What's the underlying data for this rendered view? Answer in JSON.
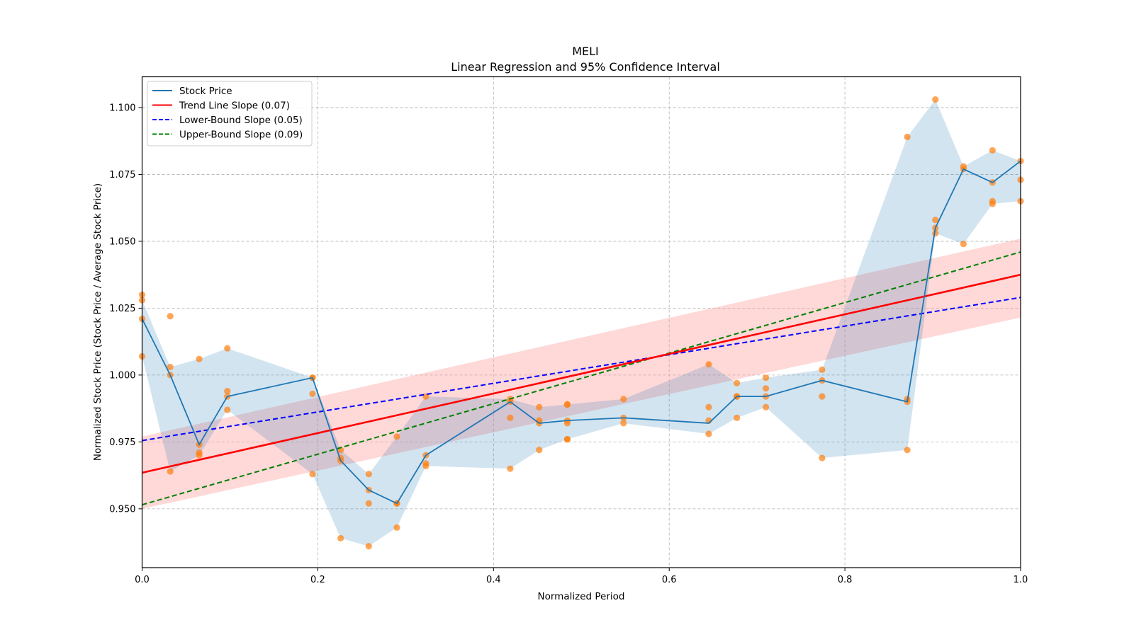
{
  "chart_data": {
    "type": "line",
    "title": "MELI",
    "subtitle": "Linear Regression and 95% Confidence Interval",
    "xlabel": "Normalized Period",
    "ylabel": "Normalized Stock Price (Stock Price / Average Stock Price)",
    "xlim": [
      0.0,
      1.0
    ],
    "ylim": [
      0.928,
      1.1115
    ],
    "grid": true,
    "legend_position": "top-left",
    "x_ticks": [
      "0.0",
      "0.2",
      "0.4",
      "0.6",
      "0.8",
      "1.0"
    ],
    "x_tick_values": [
      0.0,
      0.2,
      0.4,
      0.6,
      0.8,
      1.0
    ],
    "y_ticks": [
      "0.950",
      "0.975",
      "1.000",
      "1.025",
      "1.050",
      "1.075",
      "1.100"
    ],
    "y_tick_values": [
      0.95,
      0.975,
      1.0,
      1.025,
      1.05,
      1.075,
      1.1
    ],
    "legend": [
      {
        "label": "Stock Price",
        "color": "#1f77b4",
        "style": "solid"
      },
      {
        "label": "Trend Line Slope (0.07)",
        "color": "#ff0000",
        "style": "solid"
      },
      {
        "label": "Lower-Bound Slope (0.05)",
        "color": "#0000ff",
        "style": "dashed"
      },
      {
        "label": "Upper-Bound Slope (0.09)",
        "color": "#008000",
        "style": "dashed"
      }
    ],
    "series": [
      {
        "name": "Stock Price",
        "color": "#1f77b4",
        "x": [
          0.0,
          0.032,
          0.065,
          0.097,
          0.194,
          0.226,
          0.258,
          0.29,
          0.323,
          0.419,
          0.452,
          0.484,
          0.548,
          0.645,
          0.677,
          0.71,
          0.774,
          0.871,
          0.903,
          0.935,
          0.968,
          1.0
        ],
        "y": [
          1.021,
          1.0,
          0.974,
          0.992,
          0.999,
          0.968,
          0.957,
          0.952,
          0.97,
          0.99,
          0.982,
          0.983,
          0.984,
          0.982,
          0.992,
          0.992,
          0.998,
          0.99,
          1.055,
          1.077,
          1.072,
          1.08
        ],
        "band_upper": [
          1.028,
          1.003,
          1.006,
          1.01,
          0.999,
          0.972,
          0.963,
          0.977,
          0.992,
          0.991,
          0.988,
          0.989,
          0.991,
          1.004,
          0.997,
          0.999,
          1.002,
          1.089,
          1.103,
          1.078,
          1.084,
          1.08
        ],
        "band_lower": [
          1.007,
          0.964,
          0.97,
          0.987,
          0.963,
          0.939,
          0.936,
          0.943,
          0.966,
          0.965,
          0.972,
          0.976,
          0.982,
          0.978,
          0.984,
          0.988,
          0.969,
          0.972,
          1.053,
          1.049,
          1.064,
          1.065
        ],
        "band_color": "#1f77b4"
      }
    ],
    "scatter": {
      "color": "#ff7f0e",
      "points": [
        [
          0.0,
          1.03
        ],
        [
          0.0,
          1.028
        ],
        [
          0.0,
          1.021
        ],
        [
          0.0,
          1.007
        ],
        [
          0.032,
          1.022
        ],
        [
          0.032,
          1.003
        ],
        [
          0.032,
          1.0
        ],
        [
          0.032,
          0.964
        ],
        [
          0.065,
          1.006
        ],
        [
          0.065,
          0.974
        ],
        [
          0.065,
          0.971
        ],
        [
          0.065,
          0.97
        ],
        [
          0.097,
          1.01
        ],
        [
          0.097,
          0.994
        ],
        [
          0.097,
          0.992
        ],
        [
          0.097,
          0.987
        ],
        [
          0.194,
          0.999
        ],
        [
          0.194,
          0.999
        ],
        [
          0.194,
          0.993
        ],
        [
          0.194,
          0.963
        ],
        [
          0.226,
          0.972
        ],
        [
          0.226,
          0.969
        ],
        [
          0.226,
          0.968
        ],
        [
          0.226,
          0.939
        ],
        [
          0.258,
          0.963
        ],
        [
          0.258,
          0.957
        ],
        [
          0.258,
          0.952
        ],
        [
          0.258,
          0.936
        ],
        [
          0.29,
          0.977
        ],
        [
          0.29,
          0.952
        ],
        [
          0.29,
          0.952
        ],
        [
          0.29,
          0.943
        ],
        [
          0.323,
          0.992
        ],
        [
          0.323,
          0.97
        ],
        [
          0.323,
          0.967
        ],
        [
          0.323,
          0.966
        ],
        [
          0.419,
          0.991
        ],
        [
          0.419,
          0.99
        ],
        [
          0.419,
          0.984
        ],
        [
          0.419,
          0.965
        ],
        [
          0.452,
          0.988
        ],
        [
          0.452,
          0.983
        ],
        [
          0.452,
          0.982
        ],
        [
          0.452,
          0.972
        ],
        [
          0.484,
          0.989
        ],
        [
          0.484,
          0.989
        ],
        [
          0.484,
          0.983
        ],
        [
          0.484,
          0.982
        ],
        [
          0.484,
          0.976
        ],
        [
          0.484,
          0.976
        ],
        [
          0.548,
          0.991
        ],
        [
          0.548,
          0.984
        ],
        [
          0.548,
          0.982
        ],
        [
          0.645,
          1.004
        ],
        [
          0.645,
          0.988
        ],
        [
          0.645,
          0.983
        ],
        [
          0.645,
          0.978
        ],
        [
          0.677,
          0.997
        ],
        [
          0.677,
          0.992
        ],
        [
          0.677,
          0.992
        ],
        [
          0.677,
          0.984
        ],
        [
          0.71,
          0.999
        ],
        [
          0.71,
          0.995
        ],
        [
          0.71,
          0.992
        ],
        [
          0.71,
          0.988
        ],
        [
          0.774,
          1.002
        ],
        [
          0.774,
          0.998
        ],
        [
          0.774,
          0.992
        ],
        [
          0.774,
          0.969
        ],
        [
          0.871,
          1.089
        ],
        [
          0.871,
          0.991
        ],
        [
          0.871,
          0.99
        ],
        [
          0.871,
          0.972
        ],
        [
          0.903,
          1.103
        ],
        [
          0.903,
          1.058
        ],
        [
          0.903,
          1.055
        ],
        [
          0.903,
          1.053
        ],
        [
          0.935,
          1.078
        ],
        [
          0.935,
          1.077
        ],
        [
          0.935,
          1.049
        ],
        [
          0.968,
          1.084
        ],
        [
          0.968,
          1.072
        ],
        [
          0.968,
          1.065
        ],
        [
          0.968,
          1.064
        ],
        [
          1.0,
          1.08
        ],
        [
          1.0,
          1.073
        ],
        [
          1.0,
          1.065
        ]
      ]
    },
    "trend_line": {
      "x": [
        0.0,
        1.0
      ],
      "y": [
        0.9635,
        1.0375
      ],
      "color": "#ff0000",
      "ci_lower": [
        0.95,
        1.0215
      ],
      "ci_upper": [
        0.977,
        1.051
      ],
      "ci_color": "#ff9999"
    },
    "lower_bound_line": {
      "x": [
        0.0,
        1.0
      ],
      "y": [
        0.9755,
        1.029
      ],
      "color": "#0000ff"
    },
    "upper_bound_line": {
      "x": [
        0.0,
        1.0
      ],
      "y": [
        0.9515,
        1.046
      ],
      "color": "#008000"
    }
  }
}
